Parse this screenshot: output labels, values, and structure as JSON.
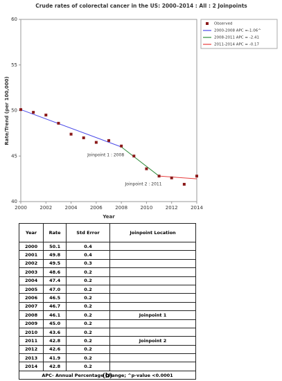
{
  "chart_data": {
    "type": "scatter",
    "title": "Crude rates of colorectal cancer in the US: 2000–2014 : All : 2 Joinpoints",
    "x_label": "Year",
    "y_label": "Rate/Trend (per 100,000)",
    "xlim": [
      2000,
      2014
    ],
    "xticks": [
      2000,
      2002,
      2004,
      2006,
      2008,
      2010,
      2012,
      2014
    ],
    "ylim": [
      40,
      60
    ],
    "yticks": [
      40,
      45,
      50,
      55,
      60
    ],
    "legend": "outside-right",
    "series": [
      {
        "name": "Observed",
        "style": "markers",
        "color": "#8b1a1a",
        "x": [
          2000,
          2001,
          2002,
          2003,
          2004,
          2005,
          2006,
          2007,
          2008,
          2009,
          2010,
          2011,
          2012,
          2013,
          2014
        ],
        "values": [
          50.1,
          49.8,
          49.5,
          48.6,
          47.4,
          47.0,
          46.5,
          46.7,
          46.1,
          45.0,
          43.6,
          42.8,
          42.6,
          41.9,
          42.8
        ]
      },
      {
        "name": "2000-2008 APC =-1.06^",
        "style": "line",
        "color": "#4a4ae8",
        "x": [
          2000,
          2008
        ],
        "values": [
          50.1,
          46.0
        ]
      },
      {
        "name": "2008-2011 APC = -2.41",
        "style": "line",
        "color": "#2e8b3a",
        "x": [
          2008,
          2011
        ],
        "values": [
          46.0,
          42.8
        ]
      },
      {
        "name": "2011-2014 APC = -0.17",
        "style": "line",
        "color": "#e83a3a",
        "x": [
          2011,
          2014
        ],
        "values": [
          42.8,
          42.5
        ]
      }
    ],
    "annotations": [
      "Joinpoint 1 : 2008",
      "Joinpoint 2 : 2011"
    ]
  },
  "table": {
    "header": [
      "Year",
      "Rate",
      "Std Error",
      "Joinpoint Location"
    ],
    "rows": [
      [
        "2000",
        "50.1",
        "0.4",
        null
      ],
      [
        "2001",
        "49.8",
        "0.4",
        null
      ],
      [
        "2002",
        "49.5",
        "0.3",
        null
      ],
      [
        "2003",
        "48.6",
        "0.2",
        null
      ],
      [
        "2004",
        "47.4",
        "0.2",
        null
      ],
      [
        "2005",
        "47.0",
        "0.2",
        null
      ],
      [
        "2006",
        "46.5",
        "0.2",
        null
      ],
      [
        "2007",
        "46.7",
        "0.2",
        null
      ],
      [
        "2008",
        "46.1",
        "0.2",
        "Joinpoint 1"
      ],
      [
        "2009",
        "45.0",
        "0.2",
        null
      ],
      [
        "2010",
        "43.6",
        "0.2",
        null
      ],
      [
        "2011",
        "42.8",
        "0.2",
        "Joinpoint 2"
      ],
      [
        "2012",
        "42.6",
        "0.2",
        null
      ],
      [
        "2013",
        "41.9",
        "0.2",
        null
      ],
      [
        "2014",
        "42.8",
        "0.2",
        null
      ]
    ],
    "footer": "APC- Annual Percentage Change; ^p-value <0.0001"
  },
  "caption": "(b)"
}
